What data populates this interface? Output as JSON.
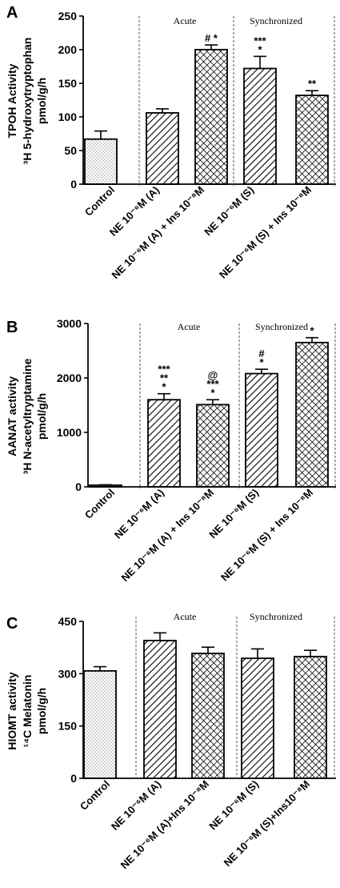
{
  "colors": {
    "ink": "#000000",
    "paper": "#ffffff"
  },
  "chart_data": [
    {
      "type": "bar",
      "panel_label": "A",
      "ylabel_line1": "TPOH Activity",
      "ylabel_line2": "³H 5-hydroxytryptophan",
      "ylabel_line3": "pmol/g/h",
      "ylim": [
        0,
        250
      ],
      "yticks": [
        "0",
        "50",
        "100",
        "150",
        "200",
        "250"
      ],
      "group_labels": [
        "Acute",
        "Synchronized"
      ],
      "categories": [
        "Control",
        "NE 10⁻⁶M (A)",
        "NE 10⁻⁶M (A) + Ins 10⁻⁸M",
        "NE 10⁻⁶M (S)",
        "NE 10⁻⁶M (S) + Ins 10⁻⁸M"
      ],
      "values": [
        67,
        106,
        200,
        172,
        132
      ],
      "errors": [
        12,
        6,
        7,
        18,
        7
      ],
      "patterns": [
        "dots",
        "hatch",
        "cross",
        "hatch",
        "cross"
      ],
      "annotations": [
        [],
        [],
        [
          "# *"
        ],
        [
          "***",
          "*"
        ],
        [
          "**"
        ]
      ]
    },
    {
      "type": "bar",
      "panel_label": "B",
      "ylabel_line1": "AANAT activity",
      "ylabel_line2": "³H N-acetyltryptamine",
      "ylabel_line3": "pmol/g/h",
      "ylim": [
        0,
        3000
      ],
      "yticks": [
        "0",
        "1000",
        "2000",
        "3000"
      ],
      "group_labels": [
        "Acute",
        "Synchronized"
      ],
      "categories": [
        "Control",
        "NE 10⁻⁶M (A)",
        "NE 10⁻⁶M (A) + Ins 10⁻⁸M",
        "NE 10⁻⁶M (S)",
        "NE 10⁻⁶M (S) + Ins 10⁻⁸M"
      ],
      "values": [
        30,
        1600,
        1510,
        2080,
        2650
      ],
      "errors": [
        8,
        110,
        90,
        80,
        90
      ],
      "patterns": [
        "dots",
        "hatch",
        "cross",
        "hatch",
        "cross"
      ],
      "annotations": [
        [],
        [
          "***",
          "**",
          "*"
        ],
        [
          "@",
          "***",
          "*"
        ],
        [
          "#",
          "*"
        ],
        [
          "*"
        ]
      ]
    },
    {
      "type": "bar",
      "panel_label": "C",
      "ylabel_line1": "HIOMT activity",
      "ylabel_line2": "¹⁴C Melatonin",
      "ylabel_line3": "pmol/g/h",
      "ylim": [
        0,
        450
      ],
      "yticks": [
        "0",
        "150",
        "300",
        "450"
      ],
      "group_labels": [
        "Acute",
        "Synchronized"
      ],
      "categories": [
        "Control",
        "NE 10⁻⁶M (A)",
        "NE 10⁻⁶M (A)+Ins 10⁻⁸M",
        "NE 10⁻⁶M (S)",
        "NE 10⁻⁶M (S)+Ins10⁻⁸M"
      ],
      "values": [
        308,
        395,
        358,
        344,
        349
      ],
      "errors": [
        12,
        22,
        18,
        27,
        18
      ],
      "patterns": [
        "dots",
        "hatch",
        "cross",
        "hatch",
        "cross"
      ],
      "annotations": [
        [],
        [],
        [],
        [],
        []
      ]
    }
  ]
}
